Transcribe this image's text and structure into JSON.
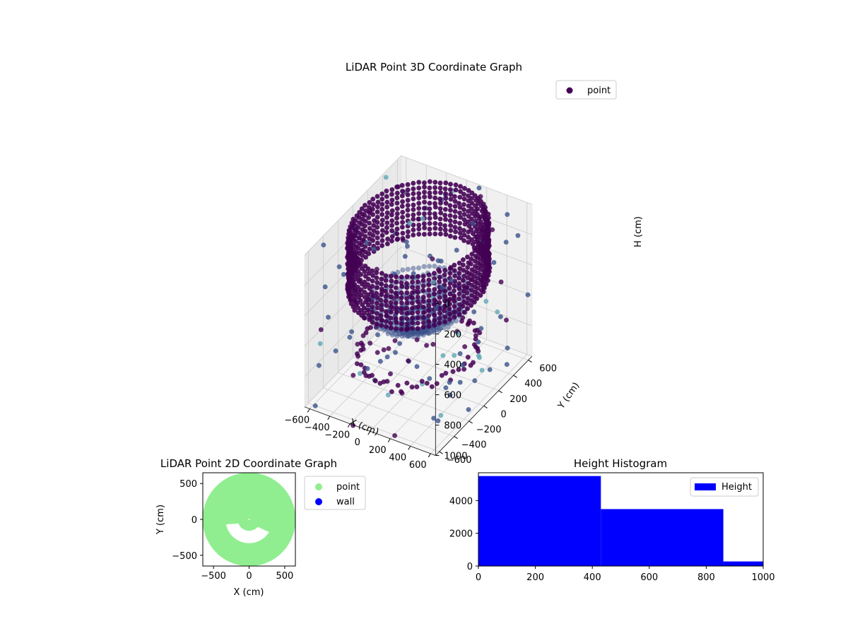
{
  "colors": {
    "point3d_dark": "#440154",
    "point3d_mid": "#3b528b",
    "point3d_teal": "#5fa8b5",
    "point2d": "#90ee90",
    "wall": "#0000ff",
    "hist_bar": "#0000ff",
    "pane": "#f2f2f2",
    "grid": "#cccccc"
  },
  "chart_data": [
    {
      "type": "scatter",
      "projection": "3d",
      "title": "LiDAR Point 3D Coordinate Graph",
      "xlabel": "X (cm)",
      "ylabel": "Y (cm)",
      "zlabel": "H (cm)",
      "xlim": [
        -650,
        650
      ],
      "ylim": [
        -650,
        650
      ],
      "zlim": [
        1000,
        0
      ],
      "xticks": [
        "−600",
        "−400",
        "−200",
        "0",
        "200",
        "400",
        "600"
      ],
      "yticks": [
        "−600",
        "−400",
        "−200",
        "0",
        "200",
        "400",
        "600"
      ],
      "zticks": [
        "0",
        "200",
        "400",
        "600",
        "800",
        "1000"
      ],
      "legend": [
        "point"
      ],
      "legend_position": "upper-right",
      "grid": true,
      "color_by": "height"
    },
    {
      "type": "scatter",
      "title": "LiDAR Point 2D Coordinate Graph",
      "xlabel": "X (cm)",
      "ylabel": "Y (cm)",
      "xlim": [
        -650,
        650
      ],
      "ylim": [
        -650,
        650
      ],
      "xticks": [
        "−500",
        "0",
        "500"
      ],
      "yticks": [
        "500",
        "0",
        "−500"
      ],
      "series": [
        {
          "name": "point",
          "color": "#90ee90"
        },
        {
          "name": "wall",
          "color": "#0000ff"
        }
      ],
      "legend_position": "outside-right"
    },
    {
      "type": "bar",
      "subtype": "histogram",
      "title": "Height Histogram",
      "xlim": [
        0,
        1000
      ],
      "ylim": [
        0,
        5700
      ],
      "xticks": [
        "0",
        "200",
        "400",
        "600",
        "800",
        "1000"
      ],
      "yticks": [
        "0",
        "2000",
        "4000"
      ],
      "bins": [
        {
          "x0": 0,
          "x1": 430,
          "count": 5500
        },
        {
          "x0": 430,
          "x1": 860,
          "count": 3480
        },
        {
          "x0": 860,
          "x1": 1000,
          "count": 280
        }
      ],
      "series": [
        {
          "name": "Height"
        }
      ],
      "legend_position": "upper-right"
    }
  ]
}
